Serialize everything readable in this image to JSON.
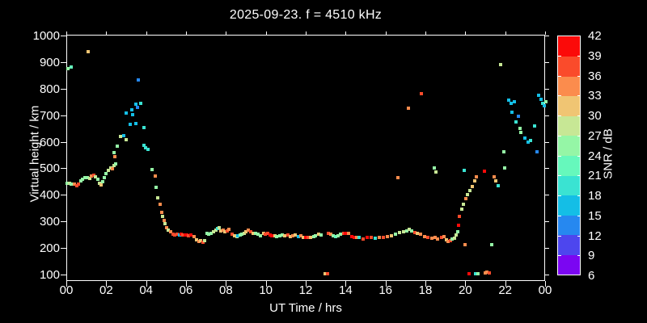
{
  "title": "2025-09-23. f = 4510 kHz",
  "colors": {
    "background": "#000000",
    "foreground": "#ffffff"
  },
  "axes": {
    "x": {
      "label": "UT Time / hrs",
      "tick_hours": [
        0,
        2,
        4,
        6,
        8,
        10,
        12,
        14,
        16,
        18,
        20,
        22,
        24
      ],
      "tick_labels": [
        "00",
        "02",
        "04",
        "06",
        "08",
        "10",
        "12",
        "14",
        "16",
        "18",
        "20",
        "22",
        "00"
      ]
    },
    "y": {
      "label": "Virtual height / km",
      "tick_values": [
        100,
        200,
        300,
        400,
        500,
        600,
        700,
        800,
        900,
        1000
      ],
      "tick_labels": [
        "100",
        "200",
        "300",
        "400",
        "500",
        "600",
        "700",
        "800",
        "900",
        "1000"
      ]
    }
  },
  "colorbar": {
    "label": "SNR / dB",
    "min": 6,
    "max": 42,
    "step": 3,
    "tick_labels": [
      "42",
      "39",
      "36",
      "33",
      "30",
      "27",
      "24",
      "21",
      "18",
      "15",
      "12",
      "9",
      "6"
    ],
    "colors_low_to_high": [
      "#7b06f2",
      "#4d46ee",
      "#2688f0",
      "#14bee6",
      "#3ae3d2",
      "#66f8bc",
      "#95f6a6",
      "#c7e795",
      "#f0c573",
      "#fb8c4d",
      "#fa4b2b",
      "#fb0a09"
    ]
  },
  "chart_data": {
    "type": "scatter",
    "title": "2025-09-23. f = 4510 kHz",
    "xlabel": "UT Time / hrs",
    "ylabel": "Virtual height / km",
    "color_label": "SNR / dB",
    "xlim_hours": [
      0,
      24
    ],
    "ylim_km": [
      76,
      1000
    ],
    "color_range_db": [
      6,
      42
    ],
    "grid": false,
    "legend": "colorbar-right",
    "points_hour_km_snr": [
      [
        0.02,
        878,
        25
      ],
      [
        0.2,
        883,
        22
      ],
      [
        1.06,
        941,
        31
      ],
      [
        0.0,
        447,
        25
      ],
      [
        0.12,
        447,
        28
      ],
      [
        0.2,
        443,
        25
      ],
      [
        0.38,
        443,
        34
      ],
      [
        0.5,
        437,
        37
      ],
      [
        0.57,
        443,
        37
      ],
      [
        0.69,
        455,
        25
      ],
      [
        0.78,
        461,
        25
      ],
      [
        0.9,
        467,
        25
      ],
      [
        1.0,
        467,
        25
      ],
      [
        1.13,
        464,
        28
      ],
      [
        1.22,
        473,
        34
      ],
      [
        1.33,
        476,
        37
      ],
      [
        1.42,
        470,
        28
      ],
      [
        1.54,
        461,
        25
      ],
      [
        1.62,
        446,
        28
      ],
      [
        1.7,
        442,
        31
      ],
      [
        1.8,
        452,
        25
      ],
      [
        1.88,
        467,
        25
      ],
      [
        1.96,
        482,
        25
      ],
      [
        2.07,
        494,
        28
      ],
      [
        2.17,
        503,
        28
      ],
      [
        2.28,
        500,
        34
      ],
      [
        2.35,
        512,
        28
      ],
      [
        2.43,
        521,
        25
      ],
      [
        2.35,
        561,
        25
      ],
      [
        2.4,
        548,
        34
      ],
      [
        2.5,
        588,
        25
      ],
      [
        2.68,
        624,
        28
      ],
      [
        2.82,
        627,
        16
      ],
      [
        2.95,
        612,
        28
      ],
      [
        2.97,
        712,
        16
      ],
      [
        3.16,
        670,
        16
      ],
      [
        3.24,
        724,
        16
      ],
      [
        3.28,
        706,
        16
      ],
      [
        3.43,
        673,
        16
      ],
      [
        3.45,
        745,
        16
      ],
      [
        3.52,
        733,
        13
      ],
      [
        3.57,
        836,
        13
      ],
      [
        3.7,
        748,
        19
      ],
      [
        3.84,
        655,
        19
      ],
      [
        3.86,
        590,
        19
      ],
      [
        3.94,
        581,
        19
      ],
      [
        4.05,
        575,
        19
      ],
      [
        4.26,
        497,
        25
      ],
      [
        4.42,
        473,
        34
      ],
      [
        4.46,
        430,
        25
      ],
      [
        4.54,
        391,
        28
      ],
      [
        4.66,
        367,
        34
      ],
      [
        4.74,
        337,
        34
      ],
      [
        4.79,
        321,
        28
      ],
      [
        4.87,
        306,
        34
      ],
      [
        4.91,
        294,
        28
      ],
      [
        4.99,
        279,
        34
      ],
      [
        5.07,
        270,
        28
      ],
      [
        5.19,
        264,
        34
      ],
      [
        5.31,
        255,
        37
      ],
      [
        5.4,
        252,
        37
      ],
      [
        5.5,
        255,
        37
      ],
      [
        5.62,
        252,
        16
      ],
      [
        5.71,
        255,
        40
      ],
      [
        5.8,
        252,
        37
      ],
      [
        5.9,
        252,
        40
      ],
      [
        6.0,
        252,
        40
      ],
      [
        6.1,
        249,
        37
      ],
      [
        6.21,
        252,
        40
      ],
      [
        6.35,
        246,
        34
      ],
      [
        6.5,
        235,
        31
      ],
      [
        6.6,
        228,
        34
      ],
      [
        6.67,
        230,
        31
      ],
      [
        6.8,
        225,
        37
      ],
      [
        6.9,
        231,
        28
      ],
      [
        7.0,
        258,
        25
      ],
      [
        7.1,
        255,
        25
      ],
      [
        7.22,
        258,
        25
      ],
      [
        7.35,
        264,
        28
      ],
      [
        7.45,
        270,
        28
      ],
      [
        7.55,
        276,
        19
      ],
      [
        7.62,
        279,
        28
      ],
      [
        7.72,
        267,
        31
      ],
      [
        7.82,
        270,
        34
      ],
      [
        7.92,
        264,
        31
      ],
      [
        8.02,
        267,
        37
      ],
      [
        8.12,
        273,
        34
      ],
      [
        8.25,
        255,
        37
      ],
      [
        8.4,
        249,
        31
      ],
      [
        8.5,
        246,
        28
      ],
      [
        8.57,
        249,
        16
      ],
      [
        8.67,
        252,
        25
      ],
      [
        8.77,
        255,
        25
      ],
      [
        8.87,
        258,
        28
      ],
      [
        8.97,
        264,
        31
      ],
      [
        9.1,
        270,
        34
      ],
      [
        9.2,
        264,
        37
      ],
      [
        9.32,
        258,
        31
      ],
      [
        9.45,
        257,
        25
      ],
      [
        9.56,
        255,
        25
      ],
      [
        9.7,
        249,
        25
      ],
      [
        9.85,
        258,
        31
      ],
      [
        9.95,
        255,
        37
      ],
      [
        10.05,
        257,
        37
      ],
      [
        10.16,
        252,
        40
      ],
      [
        10.26,
        249,
        40
      ],
      [
        10.4,
        250,
        31
      ],
      [
        10.52,
        246,
        25
      ],
      [
        10.65,
        248,
        25
      ],
      [
        10.8,
        252,
        25
      ],
      [
        10.92,
        249,
        31
      ],
      [
        11.05,
        251,
        37
      ],
      [
        11.2,
        246,
        31
      ],
      [
        11.32,
        249,
        34
      ],
      [
        11.45,
        251,
        31
      ],
      [
        11.6,
        246,
        16
      ],
      [
        11.72,
        249,
        34
      ],
      [
        11.85,
        243,
        31
      ],
      [
        11.96,
        244,
        40
      ],
      [
        12.1,
        243,
        37
      ],
      [
        12.22,
        244,
        31
      ],
      [
        12.35,
        247,
        25
      ],
      [
        12.46,
        250,
        25
      ],
      [
        12.6,
        254,
        31
      ],
      [
        12.72,
        252,
        25
      ],
      [
        12.93,
        106,
        31
      ],
      [
        13.05,
        106,
        37
      ],
      [
        13.1,
        257,
        37
      ],
      [
        13.2,
        254,
        34
      ],
      [
        13.32,
        250,
        25
      ],
      [
        13.45,
        246,
        22
      ],
      [
        13.6,
        250,
        25
      ],
      [
        13.72,
        255,
        25
      ],
      [
        13.85,
        259,
        37
      ],
      [
        13.96,
        258,
        40
      ],
      [
        14.1,
        258,
        34
      ],
      [
        14.25,
        246,
        40
      ],
      [
        14.4,
        243,
        40
      ],
      [
        14.52,
        243,
        34
      ],
      [
        14.65,
        243,
        19
      ],
      [
        14.85,
        237,
        37
      ],
      [
        15.05,
        243,
        40
      ],
      [
        15.25,
        243,
        37
      ],
      [
        15.45,
        240,
        19
      ],
      [
        15.66,
        243,
        34
      ],
      [
        15.86,
        243,
        37
      ],
      [
        16.06,
        246,
        34
      ],
      [
        16.27,
        249,
        31
      ],
      [
        16.47,
        255,
        25
      ],
      [
        16.6,
        467,
        34
      ],
      [
        16.67,
        261,
        28
      ],
      [
        16.88,
        264,
        28
      ],
      [
        17.04,
        267,
        25
      ],
      [
        17.1,
        730,
        34
      ],
      [
        17.16,
        273,
        28
      ],
      [
        17.28,
        267,
        25
      ],
      [
        17.45,
        261,
        37
      ],
      [
        17.57,
        258,
        31
      ],
      [
        17.7,
        255,
        34
      ],
      [
        17.75,
        785,
        37
      ],
      [
        17.9,
        246,
        34
      ],
      [
        18.1,
        243,
        37
      ],
      [
        18.3,
        240,
        34
      ],
      [
        18.4,
        503,
        25
      ],
      [
        18.45,
        243,
        34
      ],
      [
        18.5,
        488,
        28
      ],
      [
        18.58,
        237,
        34
      ],
      [
        18.78,
        243,
        37
      ],
      [
        18.9,
        246,
        34
      ],
      [
        19.0,
        233,
        31
      ],
      [
        19.1,
        228,
        34
      ],
      [
        19.2,
        232,
        37
      ],
      [
        19.3,
        236,
        25
      ],
      [
        19.4,
        240,
        28
      ],
      [
        19.5,
        252,
        28
      ],
      [
        19.57,
        264,
        25
      ],
      [
        19.62,
        287,
        40
      ],
      [
        19.67,
        322,
        37
      ],
      [
        19.8,
        350,
        28
      ],
      [
        19.86,
        368,
        28
      ],
      [
        19.92,
        495,
        19
      ],
      [
        19.95,
        215,
        34
      ],
      [
        20.0,
        389,
        34
      ],
      [
        20.06,
        404,
        28
      ],
      [
        20.15,
        106,
        40
      ],
      [
        20.2,
        419,
        28
      ],
      [
        20.3,
        435,
        31
      ],
      [
        20.42,
        455,
        31
      ],
      [
        20.48,
        106,
        19
      ],
      [
        20.52,
        471,
        34
      ],
      [
        20.58,
        106,
        25
      ],
      [
        20.9,
        491,
        40
      ],
      [
        20.95,
        110,
        34
      ],
      [
        21.05,
        112,
        34
      ],
      [
        21.15,
        110,
        37
      ],
      [
        21.3,
        215,
        25
      ],
      [
        21.4,
        471,
        34
      ],
      [
        21.5,
        456,
        31
      ],
      [
        21.6,
        437,
        19
      ],
      [
        21.74,
        894,
        28
      ],
      [
        21.9,
        564,
        25
      ],
      [
        21.95,
        503,
        25
      ],
      [
        22.15,
        760,
        16
      ],
      [
        22.27,
        748,
        16
      ],
      [
        22.3,
        714,
        16
      ],
      [
        22.43,
        754,
        16
      ],
      [
        22.5,
        678,
        19
      ],
      [
        22.63,
        699,
        13
      ],
      [
        22.7,
        653,
        25
      ],
      [
        22.75,
        638,
        25
      ],
      [
        22.95,
        617,
        16
      ],
      [
        23.12,
        602,
        16
      ],
      [
        23.24,
        608,
        19
      ],
      [
        23.44,
        662,
        19
      ],
      [
        23.56,
        565,
        13
      ],
      [
        23.65,
        778,
        16
      ],
      [
        23.77,
        763,
        16
      ],
      [
        23.85,
        748,
        19
      ],
      [
        23.93,
        739,
        16
      ],
      [
        24.0,
        754,
        25
      ]
    ]
  }
}
